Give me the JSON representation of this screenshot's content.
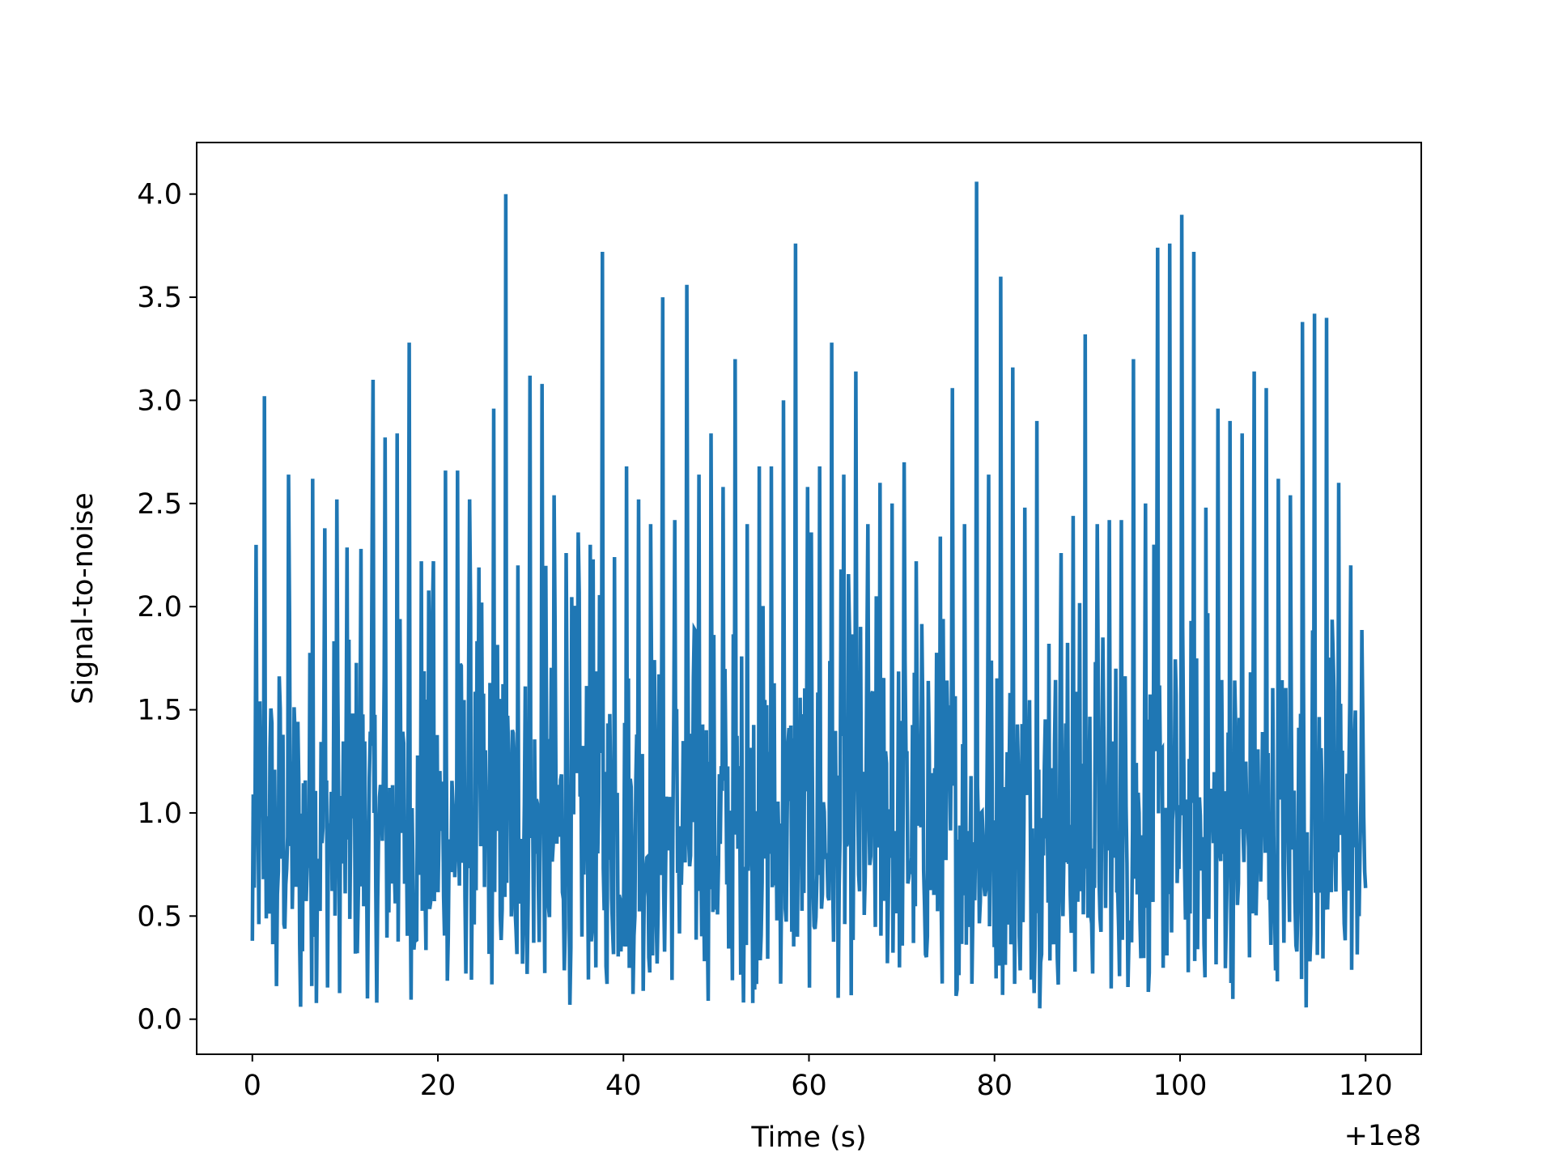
{
  "chart_data": {
    "type": "line",
    "title": "",
    "xlabel": "Time (s)",
    "ylabel": "Signal-to-noise",
    "x_offset_label": "+1e8",
    "x_offset": 100000000,
    "xlim": [
      -6,
      126
    ],
    "ylim": [
      -0.17,
      4.25
    ],
    "xticks": [
      0,
      20,
      40,
      60,
      80,
      100,
      120
    ],
    "xtick_labels": [
      "0",
      "20",
      "40",
      "60",
      "80",
      "100",
      "120"
    ],
    "yticks": [
      0.0,
      0.5,
      1.0,
      1.5,
      2.0,
      2.5,
      3.0,
      3.5,
      4.0
    ],
    "ytick_labels": [
      "0.0",
      "0.5",
      "1.0",
      "1.5",
      "2.0",
      "2.5",
      "3.0",
      "3.5",
      "4.0"
    ],
    "grid": false,
    "line_color": "#1f77b4",
    "series": [
      {
        "x_range": [
          0,
          120
        ],
        "sample_count": 1200,
        "typical_range": [
          0.05,
          2.5
        ],
        "values": [
          0.38,
          3.02,
          0.16,
          2.64,
          0.06,
          2.62,
          2.38,
          2.52,
          1.84,
          2.28,
          3.1,
          2.82,
          2.84,
          3.28,
          2.22,
          2.66,
          2.66,
          2.52,
          2.02,
          2.96,
          4.0,
          2.2,
          3.12,
          3.08,
          2.54,
          2.26,
          2.36,
          2.3,
          3.72,
          2.24,
          2.68,
          2.52,
          2.4,
          3.5,
          2.42,
          3.56,
          2.64,
          2.84,
          2.58,
          3.2,
          2.4,
          2.68,
          3.0,
          3.76,
          2.58,
          2.68,
          3.28,
          2.64,
          3.14,
          2.4,
          2.6,
          2.5,
          2.7,
          2.22,
          1.64,
          2.34,
          3.06,
          2.4,
          4.06,
          2.64,
          3.6,
          3.16,
          2.48,
          2.9,
          1.82,
          2.26,
          2.44,
          3.32,
          2.4,
          2.42,
          3.2,
          2.5,
          3.74,
          3.76,
          3.9,
          3.72,
          2.48,
          2.96,
          2.9,
          2.84,
          3.14,
          3.06,
          2.62,
          2.54,
          3.38,
          3.42,
          3.4,
          2.6,
          2.2,
          1.44
        ]
      }
    ]
  }
}
